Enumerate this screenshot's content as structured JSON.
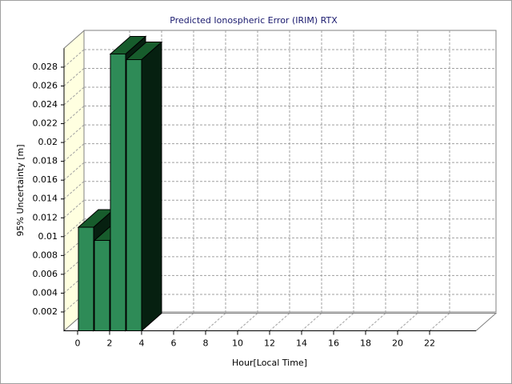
{
  "chart_data": {
    "type": "bar3d",
    "title": "Predicted Ionospheric Error (IRIM) RTX",
    "x_label": "Hour[Local Time]",
    "y_label": "95% Uncertainty [m]",
    "categories": [
      "0",
      null,
      "2",
      null,
      "4",
      null,
      "6",
      null,
      "8",
      null,
      "10",
      null,
      "12",
      null,
      "14",
      null,
      "16",
      null,
      "18",
      null,
      "20",
      null,
      "22",
      null
    ],
    "values": [
      0.011,
      0.0096,
      0.0294,
      0.0288,
      null,
      null,
      null,
      null,
      null,
      null,
      null,
      null,
      null,
      null,
      null,
      null,
      null,
      null,
      null,
      null,
      null,
      null,
      null,
      null
    ],
    "color": "#2e8b57",
    "ylim": [
      0,
      0.03
    ],
    "yticks": [
      0.002,
      0.004,
      0.006,
      0.008,
      0.01,
      0.012,
      0.014,
      0.016,
      0.018,
      0.02,
      0.022,
      0.024,
      0.026,
      0.028
    ],
    "grid": true
  }
}
